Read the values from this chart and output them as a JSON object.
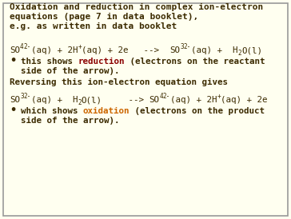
{
  "bg_color": "#FFFFF0",
  "border_color": "#999999",
  "text_color": "#3B2A00",
  "reduction_color": "#8B0000",
  "oxidation_color": "#CC6600",
  "title_line1": "Oxidation and reduction in complex ion-electron",
  "title_line2": "equations (page 7 in data booklet),",
  "subtitle": "e.g. as written in data booklet",
  "reversing": "Reversing this ion-electron equation gives",
  "font_size_title": 8.0,
  "font_size_body": 7.8,
  "font_size_eq": 7.8,
  "font_size_sup": 5.5
}
